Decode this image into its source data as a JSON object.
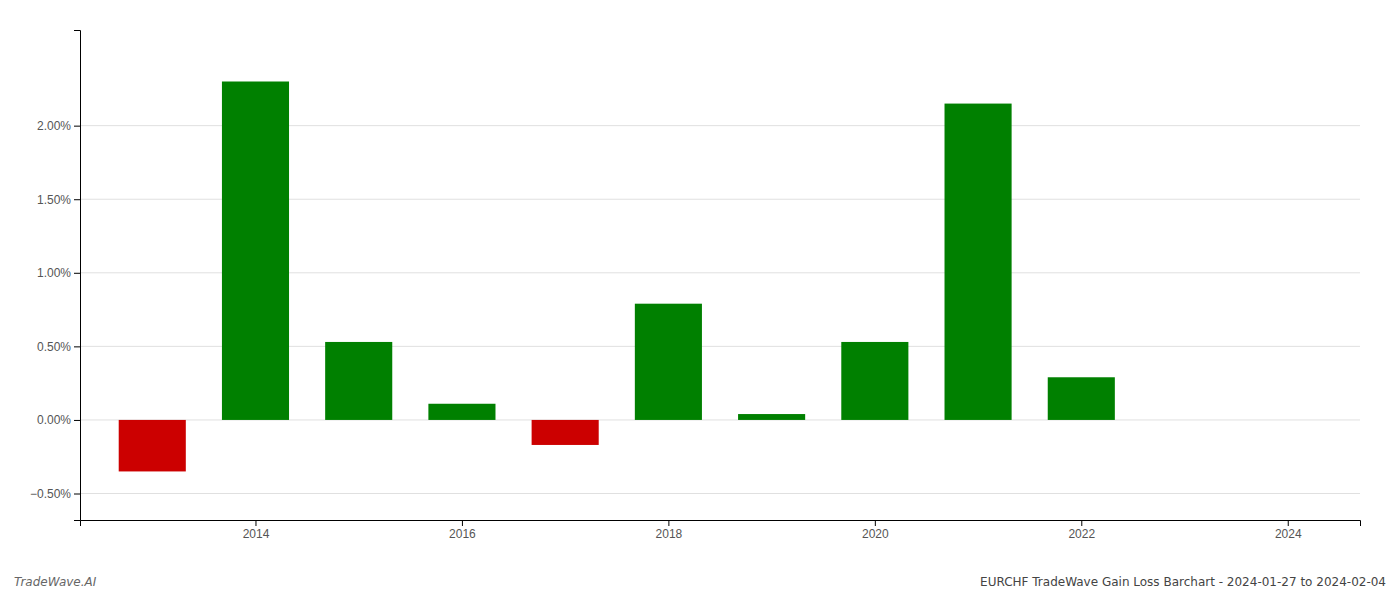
{
  "chart_data": {
    "type": "bar",
    "title": "EURCHF TradeWave Gain Loss Barchart - 2024-01-27 to 2024-02-04",
    "annotations": [
      "TradeWave.AI"
    ],
    "x": [
      2013,
      2014,
      2015,
      2016,
      2017,
      2018,
      2019,
      2020,
      2021,
      2022,
      2023
    ],
    "values": [
      -0.0035,
      0.023,
      0.0053,
      0.0011,
      -0.0017,
      0.0079,
      0.0004,
      0.0053,
      0.0215,
      0.0029,
      0.0
    ],
    "colors": [
      "#cc0000",
      "#008000",
      "#008000",
      "#008000",
      "#cc0000",
      "#008000",
      "#008000",
      "#008000",
      "#008000",
      "#008000",
      "#008000"
    ],
    "ylim": [
      -0.0068,
      0.0265
    ],
    "yticks": [
      {
        "value": -0.005,
        "label": "−0.50%"
      },
      {
        "value": 0.0,
        "label": "0.00%"
      },
      {
        "value": 0.005,
        "label": "0.50%"
      },
      {
        "value": 0.01,
        "label": "1.00%"
      },
      {
        "value": 0.015,
        "label": "1.50%"
      },
      {
        "value": 0.02,
        "label": "2.00%"
      }
    ],
    "xlim": [
      2012.3,
      2024.7
    ],
    "xticks": [
      2014,
      2016,
      2018,
      2020,
      2022,
      2024
    ],
    "grid": true
  }
}
